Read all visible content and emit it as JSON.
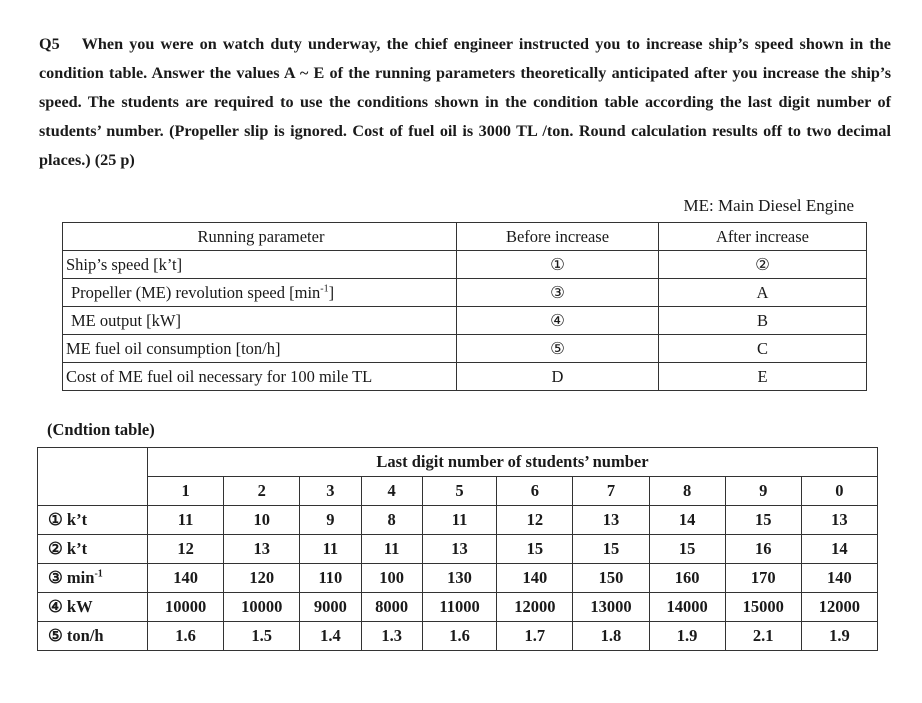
{
  "question": {
    "number": "Q5",
    "text": "When you were on watch duty underway, the chief engineer instructed you to increase ship’s speed shown in the condition table. Answer the values A ~ E of the running parameters theoretically anticipated after you increase the ship’s speed. The students are required to use the conditions shown in the condition table according the last digit number of students’ number. (Propeller slip is ignored. Cost of fuel oil is 3000 TL /ton. Round calculation results off to two decimal places.) (25 p)"
  },
  "note": "ME: Main Diesel Engine",
  "parameter_table": {
    "headers": [
      "Running parameter",
      "Before increase",
      "After increase"
    ],
    "rows": [
      {
        "param": "Ship’s speed [k’t]",
        "before": "①",
        "after": "②"
      },
      {
        "param": "Propeller (ME) revolution speed [min",
        "sup": "-1",
        "close": "]",
        "before": "③",
        "after": "A"
      },
      {
        "param": "ME output [kW]",
        "before": "④",
        "after": "B"
      },
      {
        "param": "ME fuel oil consumption [ton/h]",
        "before": "⑤",
        "after": "C"
      },
      {
        "param": "Cost of ME fuel oil necessary for 100 mile TL",
        "before": "D",
        "after": "E"
      }
    ]
  },
  "condition_table": {
    "title": "(Cndtion table)",
    "group_header": "Last digit number of students’ number",
    "digits": [
      "1",
      "2",
      "3",
      "4",
      "5",
      "6",
      "7",
      "8",
      "9",
      "0"
    ],
    "rows": [
      {
        "label": "① k’t",
        "values": [
          "11",
          "10",
          "9",
          "8",
          "11",
          "12",
          "13",
          "14",
          "15",
          "13"
        ]
      },
      {
        "label": "② k’t",
        "values": [
          "12",
          "13",
          "11",
          "11",
          "13",
          "15",
          "15",
          "15",
          "16",
          "14"
        ]
      },
      {
        "label": "③ min",
        "sup": "-1",
        "values": [
          "140",
          "120",
          "110",
          "100",
          "130",
          "140",
          "150",
          "160",
          "170",
          "140"
        ]
      },
      {
        "label": "④ kW",
        "values": [
          "10000",
          "10000",
          "9000",
          "8000",
          "11000",
          "12000",
          "13000",
          "14000",
          "15000",
          "12000"
        ]
      },
      {
        "label": "⑤ ton/h",
        "values": [
          "1.6",
          "1.5",
          "1.4",
          "1.3",
          "1.6",
          "1.7",
          "1.8",
          "1.9",
          "2.1",
          "1.9"
        ]
      }
    ]
  }
}
